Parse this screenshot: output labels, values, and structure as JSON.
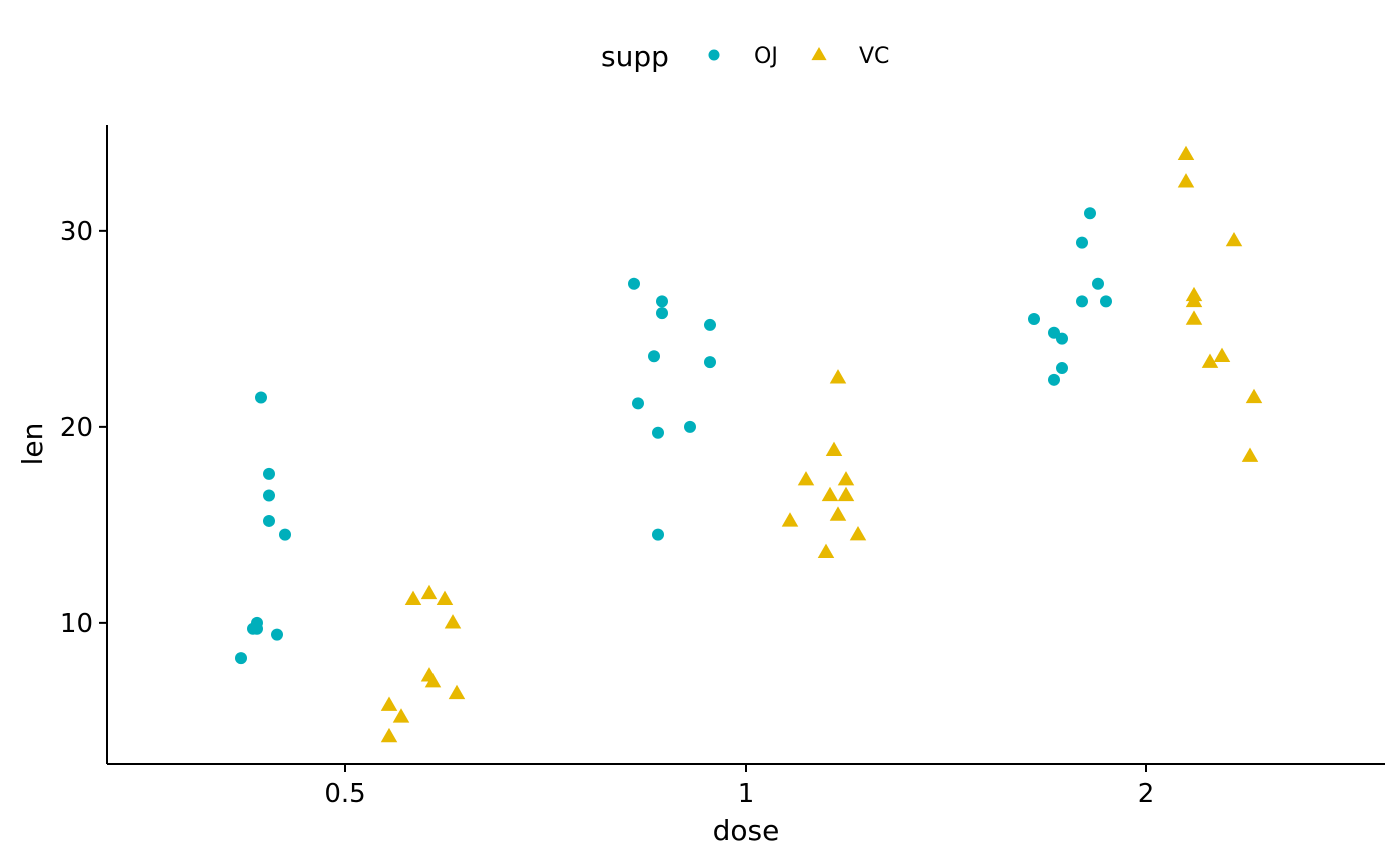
{
  "chart_data": {
    "type": "scatter",
    "xlabel": "dose",
    "ylabel": "len",
    "categories": [
      "0.5",
      "1",
      "2"
    ],
    "ylim": [
      2.8,
      35.4
    ],
    "yticks": [
      10,
      20,
      30
    ],
    "grid": false,
    "legend": {
      "title": "supp",
      "position": "top"
    },
    "series": [
      {
        "name": "OJ",
        "marker": "circle",
        "color": "#00AFBB",
        "points": [
          {
            "x": "0.5",
            "jitter": -0.26,
            "y": 8.2
          },
          {
            "x": "0.5",
            "jitter": -0.23,
            "y": 9.7
          },
          {
            "x": "0.5",
            "jitter": -0.22,
            "y": 9.7
          },
          {
            "x": "0.5",
            "jitter": -0.22,
            "y": 10.0
          },
          {
            "x": "0.5",
            "jitter": -0.21,
            "y": 21.5
          },
          {
            "x": "0.5",
            "jitter": -0.19,
            "y": 15.2
          },
          {
            "x": "0.5",
            "jitter": -0.19,
            "y": 17.6
          },
          {
            "x": "0.5",
            "jitter": -0.19,
            "y": 16.5
          },
          {
            "x": "0.5",
            "jitter": -0.17,
            "y": 9.4
          },
          {
            "x": "0.5",
            "jitter": -0.15,
            "y": 14.5
          },
          {
            "x": "1",
            "jitter": -0.28,
            "y": 27.3
          },
          {
            "x": "1",
            "jitter": -0.27,
            "y": 21.2
          },
          {
            "x": "1",
            "jitter": -0.23,
            "y": 23.6
          },
          {
            "x": "1",
            "jitter": -0.22,
            "y": 19.7
          },
          {
            "x": "1",
            "jitter": -0.21,
            "y": 25.8
          },
          {
            "x": "1",
            "jitter": -0.21,
            "y": 26.4
          },
          {
            "x": "1",
            "jitter": -0.22,
            "y": 14.5
          },
          {
            "x": "1",
            "jitter": -0.14,
            "y": 20.0
          },
          {
            "x": "1",
            "jitter": -0.09,
            "y": 25.2
          },
          {
            "x": "1",
            "jitter": -0.09,
            "y": 23.3
          },
          {
            "x": "2",
            "jitter": -0.28,
            "y": 25.5
          },
          {
            "x": "2",
            "jitter": -0.23,
            "y": 24.8
          },
          {
            "x": "2",
            "jitter": -0.23,
            "y": 22.4
          },
          {
            "x": "2",
            "jitter": -0.21,
            "y": 24.5
          },
          {
            "x": "2",
            "jitter": -0.21,
            "y": 23.0
          },
          {
            "x": "2",
            "jitter": -0.16,
            "y": 29.4
          },
          {
            "x": "2",
            "jitter": -0.16,
            "y": 26.4
          },
          {
            "x": "2",
            "jitter": -0.14,
            "y": 30.9
          },
          {
            "x": "2",
            "jitter": -0.12,
            "y": 27.3
          },
          {
            "x": "2",
            "jitter": -0.1,
            "y": 26.4
          }
        ]
      },
      {
        "name": "VC",
        "marker": "triangle",
        "color": "#E7B800",
        "points": [
          {
            "x": "0.5",
            "jitter": 0.11,
            "y": 4.2
          },
          {
            "x": "0.5",
            "jitter": 0.11,
            "y": 5.8
          },
          {
            "x": "0.5",
            "jitter": 0.14,
            "y": 5.2
          },
          {
            "x": "0.5",
            "jitter": 0.17,
            "y": 11.2
          },
          {
            "x": "0.5",
            "jitter": 0.21,
            "y": 7.3
          },
          {
            "x": "0.5",
            "jitter": 0.21,
            "y": 11.5
          },
          {
            "x": "0.5",
            "jitter": 0.22,
            "y": 7.0
          },
          {
            "x": "0.5",
            "jitter": 0.25,
            "y": 11.2
          },
          {
            "x": "0.5",
            "jitter": 0.27,
            "y": 10.0
          },
          {
            "x": "0.5",
            "jitter": 0.28,
            "y": 6.4
          },
          {
            "x": "1",
            "jitter": 0.11,
            "y": 15.2
          },
          {
            "x": "1",
            "jitter": 0.15,
            "y": 17.3
          },
          {
            "x": "1",
            "jitter": 0.2,
            "y": 13.6
          },
          {
            "x": "1",
            "jitter": 0.21,
            "y": 16.5
          },
          {
            "x": "1",
            "jitter": 0.22,
            "y": 18.8
          },
          {
            "x": "1",
            "jitter": 0.23,
            "y": 22.5
          },
          {
            "x": "1",
            "jitter": 0.23,
            "y": 15.5
          },
          {
            "x": "1",
            "jitter": 0.25,
            "y": 16.5
          },
          {
            "x": "1",
            "jitter": 0.25,
            "y": 17.3
          },
          {
            "x": "1",
            "jitter": 0.28,
            "y": 14.5
          },
          {
            "x": "2",
            "jitter": 0.1,
            "y": 33.9
          },
          {
            "x": "2",
            "jitter": 0.1,
            "y": 32.5
          },
          {
            "x": "2",
            "jitter": 0.12,
            "y": 25.5
          },
          {
            "x": "2",
            "jitter": 0.12,
            "y": 26.4
          },
          {
            "x": "2",
            "jitter": 0.12,
            "y": 26.7
          },
          {
            "x": "2",
            "jitter": 0.16,
            "y": 23.3
          },
          {
            "x": "2",
            "jitter": 0.19,
            "y": 23.6
          },
          {
            "x": "2",
            "jitter": 0.22,
            "y": 29.5
          },
          {
            "x": "2",
            "jitter": 0.26,
            "y": 18.5
          },
          {
            "x": "2",
            "jitter": 0.27,
            "y": 21.5
          }
        ]
      }
    ]
  }
}
